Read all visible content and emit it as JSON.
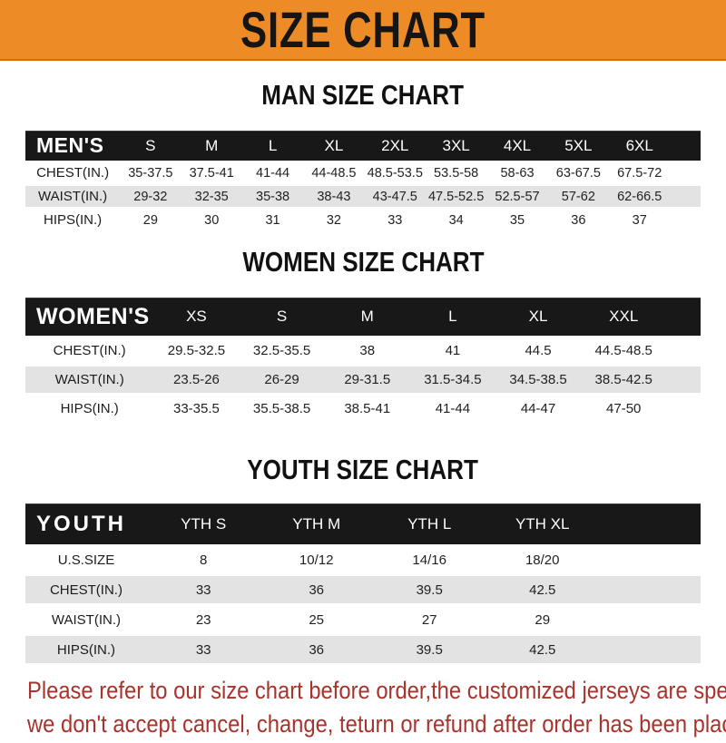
{
  "banner": {
    "title": "SIZE CHART"
  },
  "sections": [
    {
      "heading": "MAN SIZE CHART",
      "table": {
        "header_label": "MEN'S",
        "columns": [
          "S",
          "M",
          "L",
          "XL",
          "2XL",
          "3XL",
          "4XL",
          "5XL",
          "6XL"
        ],
        "rows": [
          {
            "label": "CHEST(IN.)",
            "values": [
              "35-37.5",
              "37.5-41",
              "41-44",
              "44-48.5",
              "48.5-53.5",
              "53.5-58",
              "58-63",
              "63-67.5",
              "67.5-72"
            ]
          },
          {
            "label": "WAIST(IN.)",
            "values": [
              "29-32",
              "32-35",
              "35-38",
              "38-43",
              "43-47.5",
              "47.5-52.5",
              "52.5-57",
              "57-62",
              "62-66.5"
            ]
          },
          {
            "label": "HIPS(IN.)",
            "values": [
              "29",
              "30",
              "31",
              "32",
              "33",
              "34",
              "35",
              "36",
              "37"
            ]
          }
        ]
      }
    },
    {
      "heading": "WOMEN SIZE CHART",
      "table": {
        "header_label": "WOMEN'S",
        "columns": [
          "XS",
          "S",
          "M",
          "L",
          "XL",
          "XXL"
        ],
        "rows": [
          {
            "label": "CHEST(IN.)",
            "values": [
              "29.5-32.5",
              "32.5-35.5",
              "38",
              "41",
              "44.5",
              "44.5-48.5"
            ]
          },
          {
            "label": "WAIST(IN.)",
            "values": [
              "23.5-26",
              "26-29",
              "29-31.5",
              "31.5-34.5",
              "34.5-38.5",
              "38.5-42.5"
            ]
          },
          {
            "label": "HIPS(IN.)",
            "values": [
              "33-35.5",
              "35.5-38.5",
              "38.5-41",
              "41-44",
              "44-47",
              "47-50"
            ]
          }
        ]
      }
    },
    {
      "heading": "YOUTH SIZE CHART",
      "table": {
        "header_label": "YOUTH",
        "columns": [
          "YTH S",
          "YTH M",
          "YTH L",
          "YTH XL"
        ],
        "rows": [
          {
            "label": "U.S.SIZE",
            "values": [
              "8",
              "10/12",
              "14/16",
              "18/20"
            ]
          },
          {
            "label": "CHEST(IN.)",
            "values": [
              "33",
              "36",
              "39.5",
              "42.5"
            ]
          },
          {
            "label": "WAIST(IN.)",
            "values": [
              "23",
              "25",
              "27",
              "29"
            ]
          },
          {
            "label": "HIPS(IN.)",
            "values": [
              "33",
              "36",
              "39.5",
              "42.5"
            ]
          }
        ]
      }
    }
  ],
  "footer": {
    "line1": "Please refer to our size chart before order,the customized jerseys are special products,",
    "line2": "we don't accept cancel, change, teturn or refund after order has been placed!"
  },
  "colors": {
    "banner_bg": "#ED8B26",
    "banner_border": "#C96F14",
    "table_header_bg": "#181818",
    "row_stripe": "#E3E3E3",
    "footer_text": "#A8332C",
    "text": "#1E1E1E"
  }
}
